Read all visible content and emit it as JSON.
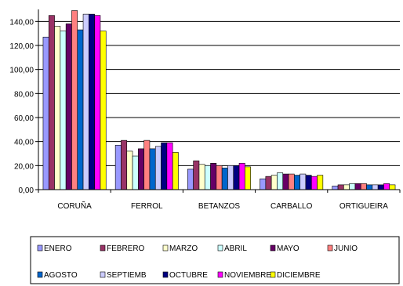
{
  "chart_data": {
    "type": "bar",
    "title": "",
    "xlabel": "",
    "ylabel": "",
    "ylim": [
      0,
      150
    ],
    "yticks": [
      "0,00",
      "20,00",
      "40,00",
      "60,00",
      "80,00",
      "100,00",
      "120,00",
      "140,00"
    ],
    "grid": true,
    "legend_position": "bottom",
    "categories": [
      "CORUÑA",
      "FERROL",
      "BETANZOS",
      "CARBALLO",
      "ORTIGUEIRA"
    ],
    "series": [
      {
        "name": "ENERO",
        "color": "#9999FF",
        "values": [
          127,
          37,
          17,
          9,
          3
        ]
      },
      {
        "name": "FEBRERO",
        "color": "#993366",
        "values": [
          145,
          41,
          24,
          11,
          4
        ]
      },
      {
        "name": "MARZO",
        "color": "#FFFFCC",
        "values": [
          136,
          32,
          21,
          12,
          4
        ]
      },
      {
        "name": "ABRIL",
        "color": "#CCFFFF",
        "values": [
          132,
          28,
          20,
          14,
          5
        ]
      },
      {
        "name": "MAYO",
        "color": "#660066",
        "values": [
          138,
          34,
          22,
          13,
          5
        ]
      },
      {
        "name": "JUNIO",
        "color": "#FF8080",
        "values": [
          149,
          41,
          20,
          13,
          5
        ]
      },
      {
        "name": "AGOSTO",
        "color": "#0066CC",
        "values": [
          133,
          34,
          18,
          12,
          4
        ]
      },
      {
        "name": "SEPTIEMB",
        "color": "#CCCCFF",
        "values": [
          146,
          36,
          20,
          13,
          4
        ]
      },
      {
        "name": "OCTUBRE",
        "color": "#000080",
        "values": [
          146,
          39,
          20,
          12,
          4
        ]
      },
      {
        "name": "NOVIEMBRE",
        "color": "#FF00FF",
        "values": [
          145,
          39,
          22,
          11,
          5
        ]
      },
      {
        "name": "DICIEMBRE",
        "color": "#FFFF00",
        "values": [
          132,
          31,
          19,
          12,
          4
        ]
      }
    ]
  }
}
